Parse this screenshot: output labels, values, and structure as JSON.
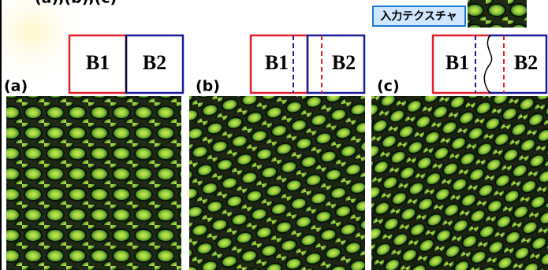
{
  "header": {
    "text": "(a),(b),(c)"
  },
  "input_label": "入力テクスチャ",
  "panels": [
    {
      "label": "(a)",
      "b1": "B1",
      "b2": "B2"
    },
    {
      "label": "(b)",
      "b1": "B1",
      "b2": "B2"
    },
    {
      "label": "(c)",
      "b1": "B1",
      "b2": "B2"
    }
  ]
}
